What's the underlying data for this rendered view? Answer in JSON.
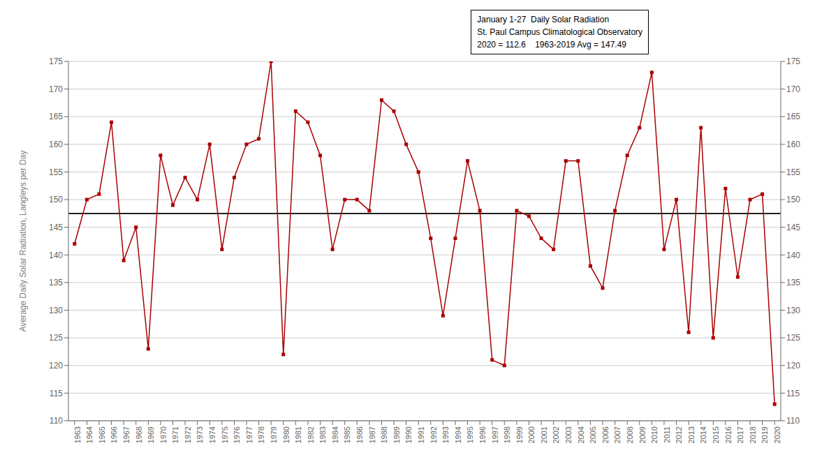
{
  "chart_data": {
    "type": "line",
    "x": [
      1963,
      1964,
      1965,
      1966,
      1967,
      1968,
      1969,
      1970,
      1971,
      1972,
      1973,
      1974,
      1975,
      1976,
      1977,
      1978,
      1979,
      1980,
      1981,
      1982,
      1983,
      1984,
      1985,
      1986,
      1987,
      1988,
      1989,
      1990,
      1991,
      1992,
      1993,
      1994,
      1995,
      1996,
      1997,
      1998,
      1999,
      2000,
      2001,
      2002,
      2003,
      2004,
      2005,
      2006,
      2007,
      2008,
      2009,
      2010,
      2011,
      2012,
      2013,
      2014,
      2015,
      2016,
      2017,
      2018,
      2019,
      2020
    ],
    "values": [
      142,
      150,
      151,
      164,
      139,
      145,
      123,
      158,
      149,
      154,
      150,
      160,
      141,
      154,
      160,
      161,
      175,
      122,
      166,
      164,
      158,
      141,
      150,
      150,
      148,
      168,
      166,
      160,
      155,
      143,
      129,
      143,
      157,
      148,
      121,
      120,
      148,
      147,
      143,
      141,
      157,
      157,
      138,
      134,
      148,
      158,
      163,
      173,
      141,
      150,
      126,
      163,
      125,
      152,
      136,
      150,
      151,
      113
    ],
    "color": "#aa0000",
    "marker": "square",
    "ylabel": "Average Daily Solar Radiation, Langleys per Day",
    "xlim": [
      1962.5,
      2020.5
    ],
    "xticks": [
      1963,
      1964,
      1965,
      1966,
      1967,
      1968,
      1969,
      1970,
      1971,
      1972,
      1973,
      1974,
      1975,
      1976,
      1977,
      1978,
      1979,
      1980,
      1981,
      1982,
      1983,
      1984,
      1985,
      1986,
      1987,
      1988,
      1989,
      1990,
      1991,
      1992,
      1993,
      1994,
      1995,
      1996,
      1997,
      1998,
      1999,
      2000,
      2001,
      2002,
      2003,
      2004,
      2005,
      2006,
      2007,
      2008,
      2009,
      2010,
      2011,
      2012,
      2013,
      2014,
      2015,
      2016,
      2017,
      2018,
      2019,
      2020
    ],
    "ylim": [
      110,
      175
    ],
    "yticks": [
      110,
      115,
      120,
      125,
      130,
      135,
      140,
      145,
      150,
      155,
      160,
      165,
      170,
      175
    ],
    "y2lim": [
      110,
      175
    ],
    "y2ticks": [
      110,
      115,
      120,
      125,
      130,
      135,
      140,
      145,
      150,
      155,
      160,
      165,
      170,
      175
    ],
    "avg_line": {
      "value": 147.49,
      "color": "#222222"
    },
    "annotation": [
      "January 1-27  Daily Solar Radiation",
      "St. Paul Campus Climatological Observatory",
      "2020 = 112.6    1963-2019 Avg = 147.49"
    ],
    "grid": true
  }
}
